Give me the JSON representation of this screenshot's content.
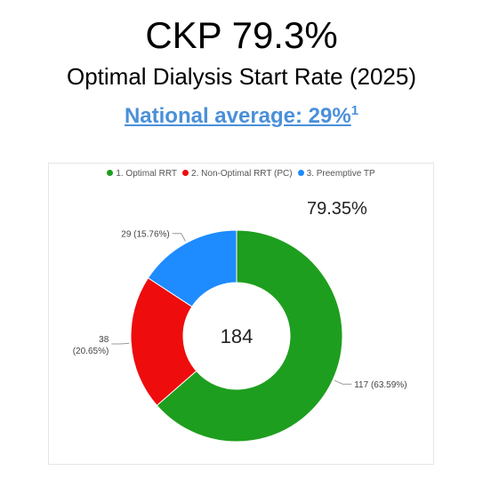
{
  "header": {
    "title": "CKP 79.3%",
    "subtitle": "Optimal Dialysis Start Rate (2025)",
    "national_text": "National average: 29%",
    "national_sup": "1"
  },
  "card": {
    "kpi": "79.35%"
  },
  "chart_data": {
    "type": "pie",
    "donut": true,
    "center_label": "184",
    "legend_position": "top",
    "series": [
      {
        "name": "1. Optimal RRT",
        "value": 117,
        "label": "117 (63.59%)",
        "color": "#1e9e1e"
      },
      {
        "name": "2. Non-Optimal RRT (PC)",
        "value": 38,
        "label": "38 (20.65%)",
        "color": "#ee0c0c"
      },
      {
        "name": "3. Preemptive TP",
        "value": 29,
        "label": "29 (15.76%)",
        "color": "#1e8bff"
      }
    ]
  }
}
